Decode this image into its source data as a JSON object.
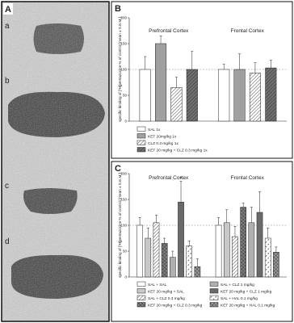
{
  "panel_a": {
    "label": "A",
    "sublabels": [
      "a",
      "b",
      "c",
      "d"
    ]
  },
  "chart_data": [
    {
      "type": "bar",
      "label": "B",
      "ylabel": "specific binding of [³H]pentazocine % of control [mean ± S.E.M.]",
      "categories": [
        "Prefrontal Cortex",
        "Frontal Cortex"
      ],
      "ylim": [
        0,
        200
      ],
      "yticks": [
        0,
        50,
        100,
        150,
        200
      ],
      "reference_line": 100,
      "series": [
        {
          "name": "SAL 1x",
          "color": "#ffffff",
          "pattern": "solid",
          "values": [
            100,
            100
          ],
          "errors": [
            25,
            10
          ]
        },
        {
          "name": "KET 20mg/kg 1x",
          "color": "#a0a0a0",
          "pattern": "solid",
          "values": [
            150,
            100
          ],
          "errors": [
            15,
            30
          ]
        },
        {
          "name": "CLZ 0.3 mg/kg 1x",
          "color": "#ffffff",
          "pattern": "hatch",
          "values": [
            65,
            93
          ],
          "errors": [
            20,
            20
          ]
        },
        {
          "name": "KET 20 mg/kg + CLZ 0.3 mg/kg 1x",
          "color": "#707070",
          "pattern": "hatch",
          "values": [
            100,
            103
          ],
          "errors": [
            35,
            15
          ]
        }
      ]
    },
    {
      "type": "bar",
      "label": "C",
      "ylabel": "specific binding of [³H]pentazocine % of control [mean ± S.E.M.]",
      "categories": [
        "Prefrontal Cortex",
        "Frontal Cortex"
      ],
      "ylim": [
        0,
        200
      ],
      "yticks": [
        0,
        50,
        100,
        150,
        200
      ],
      "reference_line": 100,
      "significance_marks": [
        {
          "text": "*",
          "series": 5,
          "category": 0
        }
      ],
      "series": [
        {
          "name": "SAL + SAL",
          "color": "#ffffff",
          "pattern": "solid",
          "values": [
            100,
            100
          ],
          "errors": [
            15,
            15
          ]
        },
        {
          "name": "KET 20 mg/kg + SAL",
          "color": "#c8c8c8",
          "pattern": "solid",
          "values": [
            75,
            105
          ],
          "errors": [
            20,
            25
          ]
        },
        {
          "name": "SAL + CLZ 0.3 mg/kg",
          "color": "#ffffff",
          "pattern": "hatch",
          "values": [
            105,
            78
          ],
          "errors": [
            15,
            20
          ]
        },
        {
          "name": "KET 20 mg/kg + CLZ 0.3 mg/kg",
          "color": "#808080",
          "pattern": "cross",
          "values": [
            65,
            135
          ],
          "errors": [
            10,
            8
          ]
        },
        {
          "name": "SAL + CLZ 1 mg/kg",
          "color": "#b0b0b0",
          "pattern": "solid",
          "values": [
            38,
            105
          ],
          "errors": [
            12,
            30
          ]
        },
        {
          "name": "KET 20 mg/kg + CLZ 1 mg/kg",
          "color": "#6a6a6a",
          "pattern": "solid",
          "values": [
            145,
            125
          ],
          "errors": [
            40,
            40
          ]
        },
        {
          "name": "SAL + HAL 0.1 mg/kg",
          "color": "#ffffff",
          "pattern": "dash",
          "values": [
            60,
            75
          ],
          "errors": [
            10,
            20
          ]
        },
        {
          "name": "KET 20 mg/kg + HAL 0.1 mg/kg",
          "color": "#9a9a9a",
          "pattern": "cross",
          "values": [
            20,
            48
          ],
          "errors": [
            15,
            10
          ]
        }
      ]
    }
  ]
}
